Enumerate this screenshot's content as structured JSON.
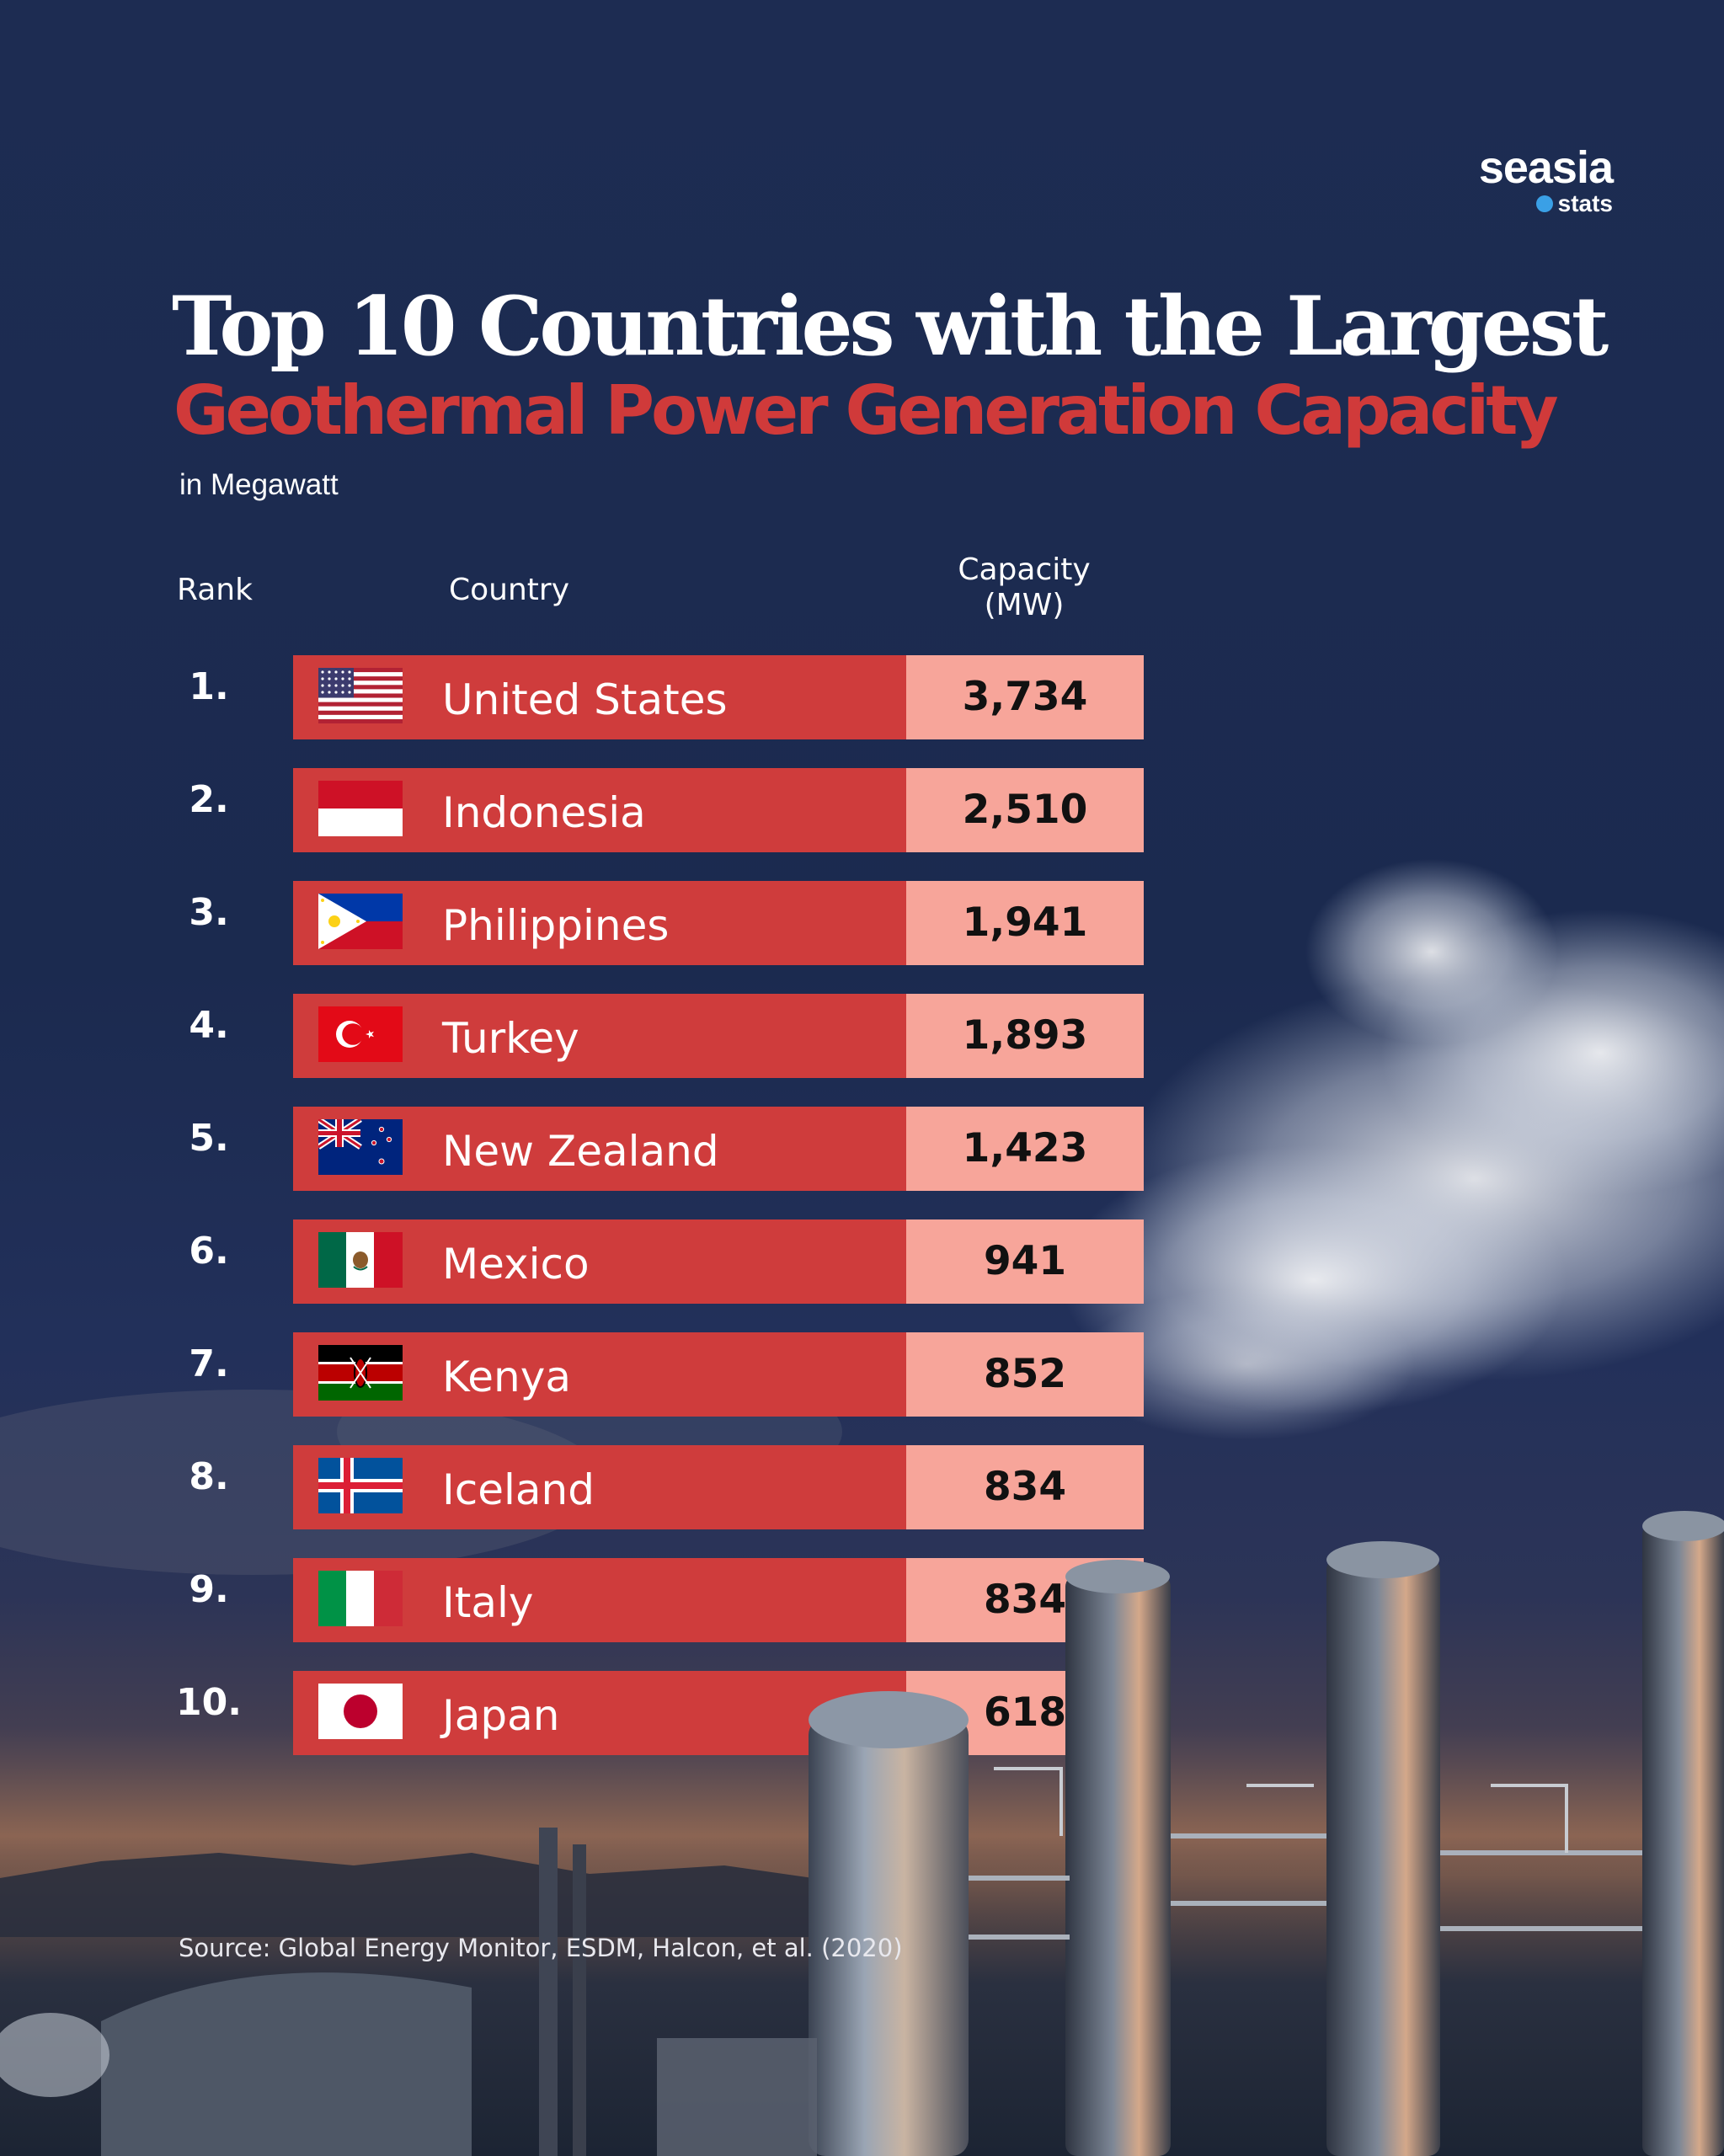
{
  "brand": {
    "name": "seasia",
    "sub": "stats"
  },
  "title_line1": "Top 10 Countries with the Largest",
  "title_line2": "Geothermal Power Generation Capacity",
  "subtitle": "in Megawatt",
  "headers": {
    "rank": "Rank",
    "country": "Country",
    "capacity_line1": "Capacity",
    "capacity_line2": "(MW)"
  },
  "source": "Source: Global Energy Monitor, ESDM, Halcon, et al. (2020)",
  "chart_data": {
    "type": "table",
    "title": "Top 10 Countries with the Largest Geothermal Power Generation Capacity",
    "subtitle": "in Megawatt",
    "columns": [
      "Rank",
      "Country",
      "Capacity (MW)"
    ],
    "rows": [
      {
        "rank": "1.",
        "country": "United States",
        "flag": "us-flag",
        "capacity": "3,734",
        "value": 3734
      },
      {
        "rank": "2.",
        "country": "Indonesia",
        "flag": "indonesia-flag",
        "capacity": "2,510",
        "value": 2510
      },
      {
        "rank": "3.",
        "country": "Philippines",
        "flag": "philippines-flag",
        "capacity": "1,941",
        "value": 1941
      },
      {
        "rank": "4.",
        "country": "Turkey",
        "flag": "turkey-flag",
        "capacity": "1,893",
        "value": 1893
      },
      {
        "rank": "5.",
        "country": "New Zealand",
        "flag": "new-zealand-flag",
        "capacity": "1,423",
        "value": 1423
      },
      {
        "rank": "6.",
        "country": "Mexico",
        "flag": "mexico-flag",
        "capacity": "941",
        "value": 941
      },
      {
        "rank": "7.",
        "country": "Kenya",
        "flag": "kenya-flag",
        "capacity": "852",
        "value": 852
      },
      {
        "rank": "8.",
        "country": "Iceland",
        "flag": "iceland-flag",
        "capacity": "834",
        "value": 834
      },
      {
        "rank": "9.",
        "country": "Italy",
        "flag": "italy-flag",
        "capacity": "834",
        "value": 834
      },
      {
        "rank": "10.",
        "country": "Japan",
        "flag": "japan-flag",
        "capacity": "618",
        "value": 618
      }
    ]
  },
  "colors": {
    "background": "#1d2c52",
    "bar": "#cf3c3c",
    "capacity_box": "#f7a59a",
    "title_accent": "#d03a3a"
  }
}
